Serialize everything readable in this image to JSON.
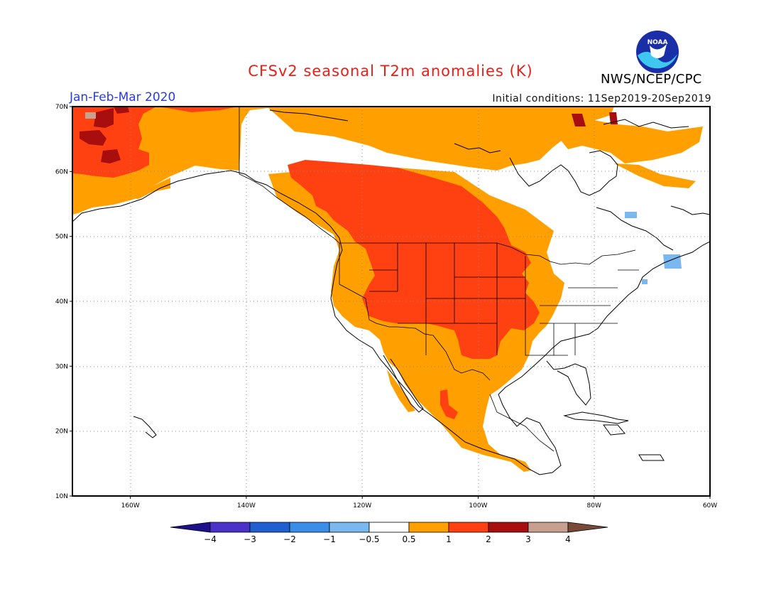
{
  "header": {
    "title": "CFSv2 seasonal T2m anomalies (K)",
    "period": "Jan-Feb-Mar 2020",
    "initial_conditions": "Initial conditions: 11Sep2019-20Sep2019",
    "agency": "NWS/NCEP/CPC",
    "logo_text": "NOAA"
  },
  "map": {
    "lon_ticks": [
      "160W",
      "140W",
      "120W",
      "100W",
      "80W",
      "60W"
    ],
    "lat_ticks": [
      "70N",
      "60N",
      "50N",
      "40N",
      "30N",
      "20N",
      "10N"
    ],
    "lon_range": [
      -170,
      -60
    ],
    "lat_range": [
      10,
      70
    ]
  },
  "colorbar": {
    "labels": [
      "-4",
      "-3",
      "-2",
      "-1",
      "-0.5",
      "0.5",
      "1",
      "2",
      "3",
      "4"
    ],
    "colors": [
      "#1e0f8c",
      "#4a32c8",
      "#1f5fd0",
      "#3a8ee8",
      "#7ab8f0",
      "#ffffff",
      "#ffa000",
      "#ff4010",
      "#a80e0e",
      "#c8a090",
      "#7a4a38"
    ]
  }
}
